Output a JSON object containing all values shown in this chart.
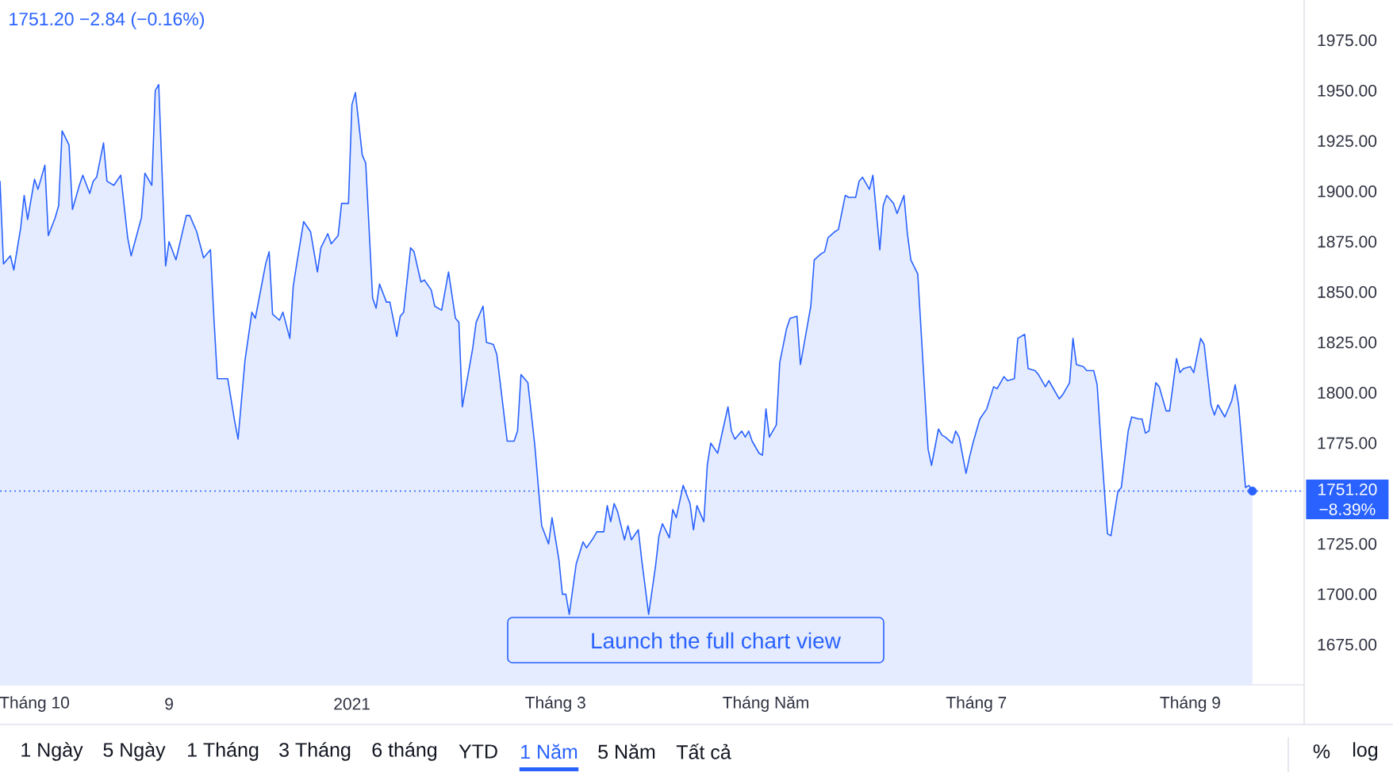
{
  "chart_data": {
    "type": "area",
    "title": "1751.20 −2.84 (−0.16%)",
    "x": [
      "2020-09-21",
      "2020-09-22",
      "2020-09-24",
      "2020-09-25",
      "2020-09-27",
      "2020-09-28",
      "2020-09-29",
      "2020-10-01",
      "2020-10-02",
      "2020-10-04",
      "2020-10-05",
      "2020-10-07",
      "2020-10-08",
      "2020-10-09",
      "2020-10-11",
      "2020-10-12",
      "2020-10-14",
      "2020-10-15",
      "2020-10-17",
      "2020-10-18",
      "2020-10-19",
      "2020-10-21",
      "2020-10-22",
      "2020-10-24",
      "2020-10-26",
      "2020-10-28",
      "2020-10-29",
      "2020-11-01",
      "2020-11-02",
      "2020-11-04",
      "2020-11-05",
      "2020-11-06",
      "2020-11-08",
      "2020-11-09",
      "2020-11-11",
      "2020-11-14",
      "2020-11-15",
      "2020-11-17",
      "2020-11-19",
      "2020-11-21",
      "2020-11-22",
      "2020-11-23",
      "2020-11-26",
      "2020-11-28",
      "2020-11-29",
      "2020-12-01",
      "2020-12-03",
      "2020-12-04",
      "2020-12-07",
      "2020-12-08",
      "2020-12-09",
      "2020-12-11",
      "2020-12-12",
      "2020-12-14",
      "2020-12-15",
      "2020-12-16",
      "2020-12-18",
      "2020-12-20",
      "2020-12-22",
      "2020-12-23",
      "2020-12-25",
      "2020-12-26",
      "2020-12-28",
      "2020-12-29",
      "2020-12-31",
      "2021-01-01",
      "2021-01-02",
      "2021-01-04",
      "2021-01-05",
      "2021-01-07",
      "2021-01-08",
      "2021-01-09",
      "2021-01-11",
      "2021-01-12",
      "2021-01-14",
      "2021-01-15",
      "2021-01-16",
      "2021-01-18",
      "2021-01-19",
      "2021-01-21",
      "2021-01-22",
      "2021-01-24",
      "2021-01-25",
      "2021-01-27",
      "2021-01-29",
      "2021-01-31",
      "2021-02-01",
      "2021-02-02",
      "2021-02-05",
      "2021-02-06",
      "2021-02-08",
      "2021-02-09",
      "2021-02-11",
      "2021-02-12",
      "2021-02-15",
      "2021-02-17",
      "2021-02-18",
      "2021-02-19",
      "2021-02-21",
      "2021-02-23",
      "2021-02-25",
      "2021-02-27",
      "2021-02-28",
      "2021-03-02",
      "2021-03-03",
      "2021-03-04",
      "2021-03-05",
      "2021-03-07",
      "2021-03-09",
      "2021-03-10",
      "2021-03-12",
      "2021-03-13",
      "2021-03-15",
      "2021-03-16",
      "2021-03-17",
      "2021-03-18",
      "2021-03-19",
      "2021-03-21",
      "2021-03-22",
      "2021-03-23",
      "2021-03-25",
      "2021-03-26",
      "2021-03-28",
      "2021-03-30",
      "2021-03-31",
      "2021-04-01",
      "2021-04-03",
      "2021-04-04",
      "2021-04-05",
      "2021-04-07",
      "2021-04-09",
      "2021-04-10",
      "2021-04-11",
      "2021-04-13",
      "2021-04-14",
      "2021-04-15",
      "2021-04-17",
      "2021-04-20",
      "2021-04-21",
      "2021-04-22",
      "2021-04-24",
      "2021-04-25",
      "2021-04-26",
      "2021-04-27",
      "2021-04-29",
      "2021-04-30",
      "2021-05-01",
      "2021-05-02",
      "2021-05-04",
      "2021-05-05",
      "2021-05-07",
      "2021-05-08",
      "2021-05-10",
      "2021-05-11",
      "2021-05-14",
      "2021-05-15",
      "2021-05-17",
      "2021-05-18",
      "2021-05-19",
      "2021-05-21",
      "2021-05-22",
      "2021-05-24",
      "2021-05-25",
      "2021-05-27",
      "2021-05-28",
      "2021-05-29",
      "2021-05-31",
      "2021-06-01",
      "2021-06-03",
      "2021-06-04",
      "2021-06-05",
      "2021-06-07",
      "2021-06-08",
      "2021-06-10",
      "2021-06-11",
      "2021-06-12",
      "2021-06-14",
      "2021-06-17",
      "2021-06-18",
      "2021-06-20",
      "2021-06-21",
      "2021-06-22",
      "2021-06-24",
      "2021-06-25",
      "2021-06-26",
      "2021-06-28",
      "2021-06-29",
      "2021-06-30",
      "2021-07-02",
      "2021-07-04",
      "2021-07-06",
      "2021-07-07",
      "2021-07-09",
      "2021-07-10",
      "2021-07-12",
      "2021-07-13",
      "2021-07-15",
      "2021-07-16",
      "2021-07-18",
      "2021-07-19",
      "2021-07-21",
      "2021-07-22",
      "2021-07-25",
      "2021-07-26",
      "2021-07-28",
      "2021-07-29",
      "2021-07-30",
      "2021-08-01",
      "2021-08-02",
      "2021-08-04",
      "2021-08-05",
      "2021-08-06",
      "2021-08-08",
      "2021-08-09",
      "2021-08-11",
      "2021-08-12",
      "2021-08-14",
      "2021-08-15",
      "2021-08-17",
      "2021-08-18",
      "2021-08-19",
      "2021-08-20",
      "2021-08-22",
      "2021-08-23",
      "2021-08-25",
      "2021-08-26",
      "2021-08-28",
      "2021-08-29",
      "2021-08-30",
      "2021-09-01",
      "2021-09-02",
      "2021-09-04",
      "2021-09-05",
      "2021-09-07",
      "2021-09-08",
      "2021-09-09",
      "2021-09-11",
      "2021-09-13",
      "2021-09-14",
      "2021-09-15",
      "2021-09-17",
      "2021-09-18",
      "2021-09-19"
    ],
    "series": [
      {
        "color": "#2962ff",
        "values": [
          1905,
          1864,
          1868,
          1861,
          1882,
          1898,
          1886,
          1906,
          1901,
          1913,
          1878,
          1887,
          1893,
          1930,
          1923,
          1891,
          1903,
          1908,
          1899,
          1905,
          1907,
          1924,
          1905,
          1903,
          1908,
          1877,
          1868,
          1887,
          1909,
          1903,
          1950,
          1953,
          1863,
          1875,
          1866,
          1888,
          1888,
          1880,
          1867,
          1871,
          1837,
          1807,
          1807,
          1786,
          1777,
          1816,
          1840,
          1837,
          1864,
          1870,
          1839,
          1836,
          1840,
          1827,
          1853,
          1864,
          1885,
          1880,
          1860,
          1872,
          1879,
          1874,
          1878,
          1894,
          1894,
          1943,
          1949,
          1918,
          1914,
          1847,
          1842,
          1854,
          1845,
          1845,
          1828,
          1838,
          1840,
          1872,
          1870,
          1855,
          1856,
          1851,
          1843,
          1841,
          1860,
          1837,
          1835,
          1793,
          1822,
          1835,
          1843,
          1825,
          1824,
          1819,
          1776,
          1776,
          1781,
          1809,
          1805,
          1774,
          1734,
          1725,
          1738,
          1717,
          1700,
          1700,
          1690,
          1715,
          1726,
          1723,
          1728,
          1731,
          1731,
          1744,
          1736,
          1745,
          1741,
          1727,
          1734,
          1727,
          1732,
          1717,
          1690,
          1714,
          1729,
          1735,
          1728,
          1742,
          1738,
          1754,
          1745,
          1732,
          1744,
          1736,
          1764,
          1775,
          1770,
          1793,
          1781,
          1777,
          1781,
          1778,
          1781,
          1776,
          1770,
          1769,
          1792,
          1778,
          1784,
          1815,
          1832,
          1837,
          1838,
          1814,
          1843,
          1866,
          1869,
          1870,
          1877,
          1880,
          1881,
          1898,
          1897,
          1897,
          1905,
          1907,
          1901,
          1908,
          1871,
          1893,
          1898,
          1894,
          1889,
          1898,
          1879,
          1866,
          1859,
          1772,
          1764,
          1782,
          1779,
          1778,
          1775,
          1781,
          1778,
          1760,
          1768,
          1775,
          1787,
          1792,
          1803,
          1802,
          1808,
          1806,
          1807,
          1827,
          1829,
          1812,
          1811,
          1809,
          1803,
          1806,
          1797,
          1799,
          1805,
          1827,
          1814,
          1813,
          1811,
          1811,
          1804,
          1778,
          1730,
          1729,
          1751,
          1753,
          1781,
          1788,
          1787,
          1787,
          1780,
          1781,
          1805,
          1803,
          1791,
          1791,
          1817,
          1810,
          1812,
          1813,
          1810,
          1827,
          1824,
          1794,
          1789,
          1794,
          1788,
          1796,
          1804,
          1794,
          1753,
          1754,
          1751.2
        ]
      },
      {
        "type": "scatter",
        "color": "#2962ff",
        "marker": "circle",
        "x": [
          "2021-09-19"
        ],
        "values": [
          1751.2
        ]
      }
    ],
    "xlim": [
      "2020-09-21",
      "2021-10-04"
    ],
    "xticks": [
      {
        "value": "2020-10-01",
        "label": "Tháng 10"
      },
      {
        "value": "2020-11-09",
        "label": "9"
      },
      {
        "value": "2021-01-01",
        "label": "2021"
      },
      {
        "value": "2021-03-01",
        "label": "Tháng 3"
      },
      {
        "value": "2021-05-01",
        "label": "Tháng Năm"
      },
      {
        "value": "2021-07-01",
        "label": "Tháng 7"
      },
      {
        "value": "2021-09-01",
        "label": "Tháng 9"
      }
    ],
    "ylim": [
      1655,
      1995
    ],
    "yticks": [
      {
        "value": 1675,
        "label": "1675.00"
      },
      {
        "value": 1700,
        "label": "1700.00"
      },
      {
        "value": 1725,
        "label": "1725.00"
      },
      {
        "value": 1775,
        "label": "1775.00"
      },
      {
        "value": 1800,
        "label": "1800.00"
      },
      {
        "value": 1825,
        "label": "1825.00"
      },
      {
        "value": 1850,
        "label": "1850.00"
      },
      {
        "value": 1875,
        "label": "1875.00"
      },
      {
        "value": 1900,
        "label": "1900.00"
      },
      {
        "value": 1925,
        "label": "1925.00"
      },
      {
        "value": 1950,
        "label": "1950.00"
      },
      {
        "value": 1975,
        "label": "1975.00"
      }
    ],
    "ref_lines": [
      {
        "axis": "y",
        "value": 1751.2,
        "label": "1751.20 −8.39%",
        "color": "#2962ff",
        "line_style": "dotted"
      }
    ],
    "annotations": [
      "Launch the full chart view",
      "1 Ngày",
      "5 Ngày",
      "1 Tháng",
      "3 Tháng",
      "6 tháng",
      "YTD",
      "1 Năm",
      "5 Năm",
      "Tất cả",
      "%",
      "log"
    ]
  }
}
